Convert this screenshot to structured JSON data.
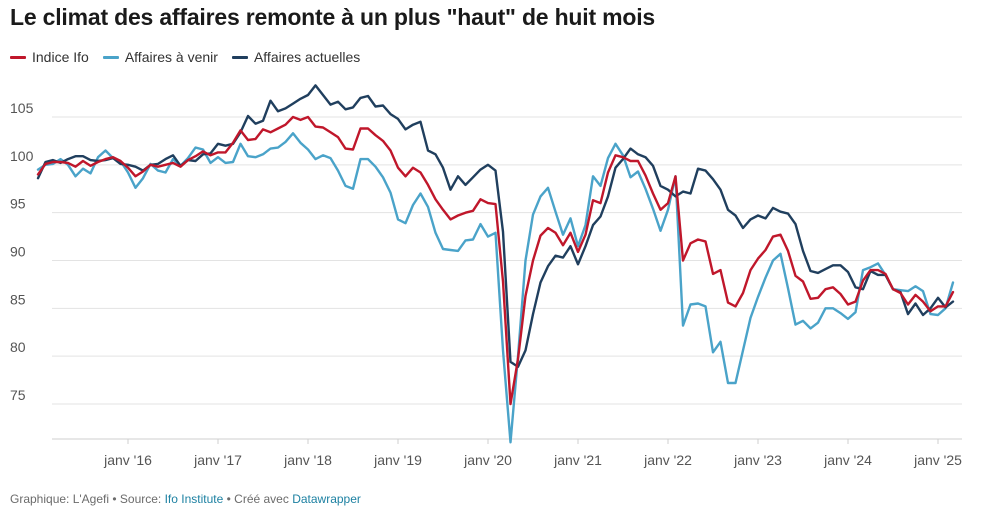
{
  "title": "Le climat des affaires remonte à un plus \"haut\" de huit mois",
  "footer": {
    "prefix": "Graphique: L'Agefi • Source: ",
    "source": "Ifo Institute",
    "middle": " • Créé avec ",
    "tool": "Datawrapper"
  },
  "chart_data": {
    "type": "line",
    "title": "Le climat des affaires remonte à un plus \"haut\" de huit mois",
    "xlabel": "",
    "ylabel": "",
    "x_start": "2015-01",
    "x_frequency": "monthly",
    "xlim": [
      "2015-01",
      "2025-02"
    ],
    "ylim": [
      71,
      109
    ],
    "y_ticks": [
      75,
      80,
      85,
      90,
      95,
      100,
      105
    ],
    "y_tick_labels": [
      "75",
      "80",
      "85",
      "90",
      "95",
      "100",
      "105"
    ],
    "x_ticks": [
      "2016-01",
      "2017-01",
      "2018-01",
      "2019-01",
      "2020-01",
      "2021-01",
      "2022-01",
      "2023-01",
      "2024-01",
      "2025-01"
    ],
    "x_tick_labels": [
      "janv '16",
      "janv '17",
      "janv '18",
      "janv '19",
      "janv '20",
      "janv '21",
      "janv '22",
      "janv '23",
      "janv '24",
      "janv '25"
    ],
    "grid": "horizontal",
    "legend_position": "top-left",
    "series": [
      {
        "name": "Indice Ifo",
        "color": "#c0172b",
        "values": [
          99.0,
          100.1,
          100.3,
          100.3,
          100.2,
          99.8,
          100.4,
          99.9,
          100.3,
          100.6,
          100.8,
          100.4,
          99.7,
          98.8,
          99.3,
          100.0,
          99.8,
          100.0,
          100.2,
          99.8,
          100.5,
          100.9,
          101.4,
          101.0,
          101.3,
          101.3,
          102.3,
          103.6,
          102.6,
          102.7,
          103.7,
          103.4,
          103.8,
          104.2,
          105.0,
          104.7,
          105.0,
          104.0,
          103.9,
          103.4,
          102.9,
          101.7,
          101.6,
          103.8,
          103.8,
          103.1,
          102.5,
          101.5,
          99.7,
          98.8,
          99.7,
          99.2,
          97.9,
          96.4,
          95.3,
          94.3,
          94.7,
          95.0,
          95.2,
          96.4,
          96.0,
          95.9,
          87.8,
          75.0,
          79.7,
          86.3,
          90.0,
          92.6,
          93.4,
          92.9,
          91.6,
          92.9,
          90.9,
          92.7,
          96.3,
          96.0,
          99.2,
          101.0,
          100.8,
          100.4,
          100.4,
          98.9,
          97.0,
          95.3,
          96.0,
          98.8,
          90.0,
          91.8,
          92.2,
          92.0,
          88.6,
          89.0,
          85.6,
          85.2,
          86.6,
          89.0,
          90.2,
          91.1,
          92.5,
          92.7,
          91.0,
          88.4,
          87.8,
          86.0,
          86.1,
          87.0,
          87.2,
          86.5,
          85.4,
          85.7,
          87.9,
          89.0,
          89.0,
          88.6,
          87.0,
          86.6,
          85.4,
          86.4,
          85.7,
          84.7,
          85.2,
          85.2,
          86.7
        ],
        "values_note": ""
      },
      {
        "name": "Affaires à venir",
        "color": "#4aa3c9",
        "values": [
          99.5,
          100.0,
          100.1,
          100.6,
          100.0,
          98.8,
          99.6,
          99.1,
          100.8,
          101.5,
          100.7,
          100.4,
          99.2,
          97.6,
          98.6,
          100.1,
          99.4,
          99.2,
          100.6,
          99.9,
          100.7,
          101.8,
          101.6,
          100.2,
          100.8,
          100.2,
          100.3,
          102.2,
          100.9,
          100.8,
          101.1,
          101.7,
          101.8,
          102.4,
          103.3,
          102.3,
          101.6,
          100.6,
          101.0,
          100.7,
          99.4,
          97.8,
          97.5,
          100.6,
          100.6,
          99.8,
          98.7,
          97.1,
          94.3,
          93.9,
          95.8,
          97.0,
          95.6,
          92.9,
          91.2,
          91.1,
          91.0,
          92.1,
          92.2,
          93.8,
          92.5,
          92.9,
          80.6,
          71.0,
          80.0,
          90.0,
          94.8,
          96.7,
          97.6,
          95.1,
          92.7,
          94.4,
          91.5,
          93.7,
          98.8,
          97.8,
          100.7,
          102.2,
          101.0,
          98.7,
          99.3,
          97.5,
          95.4,
          93.1,
          95.3,
          98.8,
          83.2,
          85.4,
          85.5,
          85.2,
          80.4,
          81.5,
          77.2,
          77.2,
          80.6,
          84.0,
          86.2,
          88.2,
          90.0,
          90.7,
          87.1,
          83.3,
          83.7,
          82.9,
          83.5,
          85.0,
          85.0,
          84.5,
          83.9,
          84.6,
          89.0,
          89.3,
          89.7,
          88.5,
          87.0,
          86.9,
          86.8,
          87.3,
          86.8,
          84.4,
          84.3,
          85.0,
          87.7
        ]
      },
      {
        "name": "Affaires actuelles",
        "color": "#203f5e",
        "values": [
          98.6,
          100.3,
          100.5,
          100.2,
          100.6,
          100.9,
          100.9,
          100.5,
          100.4,
          100.5,
          100.7,
          100.1,
          100.0,
          99.8,
          99.4,
          100.0,
          100.1,
          100.6,
          101.0,
          99.9,
          100.5,
          100.4,
          101.1,
          101.2,
          102.2,
          102.0,
          102.2,
          103.4,
          105.1,
          104.3,
          104.6,
          106.7,
          105.6,
          105.9,
          106.4,
          106.9,
          107.3,
          108.3,
          107.3,
          106.3,
          106.6,
          105.8,
          106.0,
          107.0,
          107.2,
          106.1,
          106.2,
          105.3,
          104.8,
          103.7,
          104.2,
          104.5,
          101.5,
          101.1,
          99.7,
          97.4,
          98.8,
          97.9,
          98.7,
          99.5,
          100.0,
          99.4,
          93.0,
          79.4,
          78.9,
          80.6,
          84.4,
          87.7,
          89.4,
          90.5,
          90.3,
          91.5,
          89.6,
          91.5,
          93.7,
          94.6,
          96.7,
          99.7,
          100.6,
          101.7,
          101.1,
          100.8,
          99.9,
          97.8,
          97.4,
          96.7,
          97.2,
          97.0,
          99.6,
          99.4,
          98.5,
          97.4,
          95.3,
          94.7,
          93.4,
          94.3,
          94.7,
          94.4,
          95.5,
          95.1,
          94.9,
          93.8,
          91.0,
          88.9,
          88.7,
          89.1,
          89.5,
          89.5,
          88.8,
          87.2,
          87.0,
          88.9,
          88.5,
          88.5,
          87.0,
          86.7,
          84.4,
          85.5,
          84.3,
          85.0,
          86.1,
          85.1,
          85.7
        ]
      }
    ]
  }
}
